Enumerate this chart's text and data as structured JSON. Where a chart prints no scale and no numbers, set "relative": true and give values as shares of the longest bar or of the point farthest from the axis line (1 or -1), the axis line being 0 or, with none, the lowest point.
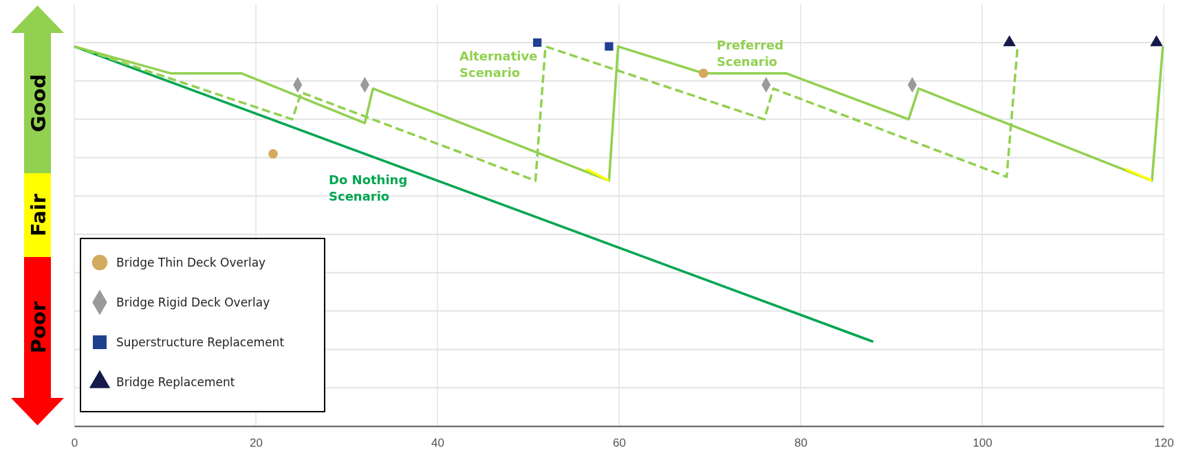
{
  "chart_data": {
    "type": "line",
    "relative": true,
    "xlim": [
      0,
      120
    ],
    "xticks": [
      0,
      20,
      40,
      60,
      80,
      100,
      120
    ],
    "grid": true,
    "legend": "bottom left",
    "annotations": [
      "Good",
      "Fair",
      "Poor"
    ],
    "series": [
      {
        "name": "Do Nothing Scenario",
        "color": "#00a651",
        "line_style": "solid",
        "x": [
          0,
          88
        ],
        "values": [
          0.99,
          0.22
        ]
      },
      {
        "name": "Alternative Scenario",
        "color": "#92d050",
        "line_style": "dashed",
        "x": [
          0,
          24,
          25,
          50.8,
          51.9,
          76,
          77,
          102.7,
          103.9
        ],
        "values": [
          0.99,
          0.8,
          0.87,
          0.64,
          0.99,
          0.8,
          0.88,
          0.65,
          0.99
        ]
      },
      {
        "name": "Preferred Scenario",
        "color": "#92d050",
        "line_style": "solid",
        "x": [
          0,
          10.6,
          18.4,
          32,
          32.9,
          58.9,
          59.9,
          69.3,
          78.4,
          91.9,
          93,
          118.7,
          119.9
        ],
        "values": [
          0.99,
          0.92,
          0.92,
          0.79,
          0.88,
          0.64,
          0.99,
          0.92,
          0.92,
          0.8,
          0.88,
          0.64,
          0.99
        ]
      },
      {
        "color": "#ffff00",
        "line_style": "solid",
        "x": [
          56.4,
          58.9
        ],
        "values": [
          0.67,
          0.64
        ]
      },
      {
        "color": "#ffff00",
        "line_style": "solid",
        "x": [
          115.8,
          118.7
        ],
        "values": [
          0.67,
          0.64
        ]
      },
      {
        "type": "scatter",
        "name": "Bridge Thin Deck Overlay",
        "color": "#d4aa5e",
        "marker": "circle",
        "x": [
          21.9,
          69.3
        ],
        "values": [
          0.71,
          0.92
        ]
      },
      {
        "type": "scatter",
        "name": "Bridge Rigid Deck Overlay",
        "color": "#999999",
        "marker": "diamond",
        "x": [
          24.6,
          32,
          76.2,
          92.3
        ],
        "values": [
          0.89,
          0.89,
          0.89,
          0.89
        ]
      },
      {
        "type": "scatter",
        "name": "Superstructure Replacement",
        "color": "#1f3f8f",
        "marker": "square",
        "x": [
          51,
          58.9
        ],
        "values": [
          1,
          0.99
        ]
      },
      {
        "type": "scatter",
        "name": "Bridge Replacement",
        "color": "#141a4a",
        "marker": "triangle",
        "x": [
          103,
          119.2
        ],
        "values": [
          1,
          1
        ]
      }
    ]
  }
}
